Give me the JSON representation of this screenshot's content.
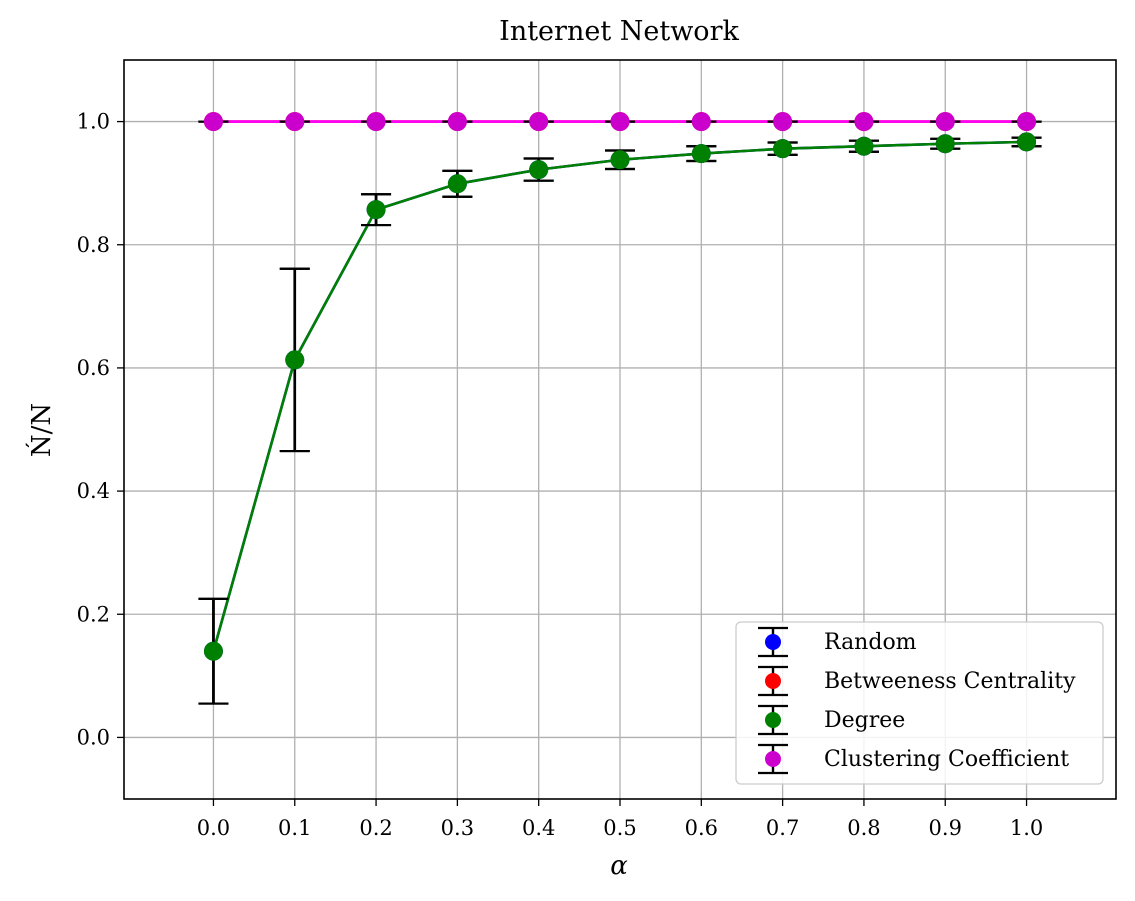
{
  "chart_data": {
    "type": "line",
    "title": "Internet Network",
    "xlabel": "α",
    "ylabel": "Ń/N",
    "xlim": [
      -0.11,
      1.11
    ],
    "ylim": [
      -0.1,
      1.1
    ],
    "x": [
      0.0,
      0.1,
      0.2,
      0.3,
      0.4,
      0.5,
      0.6,
      0.7,
      0.8,
      0.9,
      1.0
    ],
    "x_tick_labels": [
      "0.0",
      "0.1",
      "0.2",
      "0.3",
      "0.4",
      "0.5",
      "0.6",
      "0.7",
      "0.8",
      "0.9",
      "1.0"
    ],
    "y_ticks": [
      0.0,
      0.2,
      0.4,
      0.6,
      0.8,
      1.0
    ],
    "y_tick_labels": [
      "0.0",
      "0.2",
      "0.4",
      "0.6",
      "0.8",
      "1.0"
    ],
    "grid": true,
    "legend_position": "lower-right",
    "series": [
      {
        "name": "Random",
        "color": "#0000ff",
        "values": [
          0.14,
          0.613,
          0.857,
          0.899,
          0.922,
          0.938,
          0.948,
          0.956,
          0.96,
          0.964,
          0.967
        ],
        "errors": [
          0.085,
          0.148,
          0.025,
          0.021,
          0.018,
          0.015,
          0.012,
          0.01,
          0.009,
          0.008,
          0.007
        ]
      },
      {
        "name": "Betweeness Centrality",
        "color": "#ff0000",
        "values": [
          1.0,
          1.0,
          1.0,
          1.0,
          1.0,
          1.0,
          1.0,
          1.0,
          1.0,
          1.0,
          1.0
        ],
        "errors": [
          0,
          0,
          0,
          0,
          0,
          0,
          0,
          0,
          0,
          0,
          0
        ]
      },
      {
        "name": "Degree",
        "color": "#008000",
        "values": [
          0.14,
          0.613,
          0.857,
          0.899,
          0.922,
          0.938,
          0.948,
          0.956,
          0.96,
          0.964,
          0.967
        ],
        "errors": [
          0.085,
          0.148,
          0.025,
          0.021,
          0.018,
          0.015,
          0.012,
          0.01,
          0.009,
          0.008,
          0.007
        ]
      },
      {
        "name": "Clustering Coefficient",
        "color": "#cc00cc",
        "line_color": "#ff00ff",
        "values": [
          1.0,
          1.0,
          1.0,
          1.0,
          1.0,
          1.0,
          1.0,
          1.0,
          1.0,
          1.0,
          1.0
        ],
        "errors": [
          0,
          0,
          0,
          0,
          0,
          0,
          0,
          0,
          0,
          0,
          0
        ]
      }
    ]
  }
}
